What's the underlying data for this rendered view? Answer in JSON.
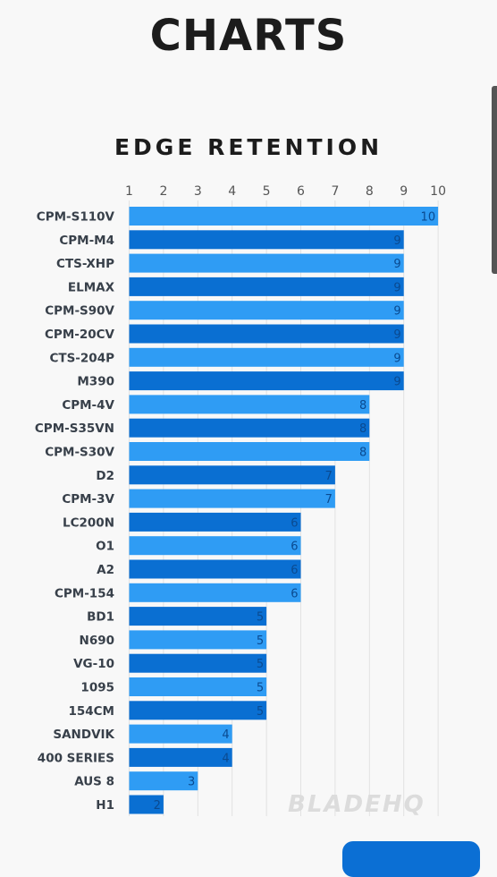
{
  "header": {
    "title": "CHARTS"
  },
  "colors": {
    "bar_light": "#2f9cf4",
    "bar_dark": "#0a6fd2",
    "label": "#38404a",
    "value": "#0a4a90"
  },
  "chart_data": {
    "type": "bar",
    "orientation": "horizontal",
    "title": "EDGE RETENTION",
    "xlim": [
      1,
      10
    ],
    "xticks": [
      "1",
      "2",
      "3",
      "4",
      "5",
      "6",
      "7",
      "8",
      "9",
      "10"
    ],
    "grid": true,
    "categories": [
      "CPM-S110V",
      "CPM-M4",
      "CTS-XHP",
      "ELMAX",
      "CPM-S90V",
      "CPM-20CV",
      "CTS-204P",
      "M390",
      "CPM-4V",
      "CPM-S35VN",
      "CPM-S30V",
      "D2",
      "CPM-3V",
      "LC200N",
      "O1",
      "A2",
      "CPM-154",
      "BD1",
      "N690",
      "VG-10",
      "1095",
      "154CM",
      "SANDVIK",
      "400 SERIES",
      "AUS 8",
      "H1"
    ],
    "values": [
      10,
      9,
      9,
      9,
      9,
      9,
      9,
      9,
      8,
      8,
      8,
      7,
      7,
      6,
      6,
      6,
      6,
      5,
      5,
      5,
      5,
      5,
      4,
      4,
      3,
      2
    ],
    "watermark": "BLADEHQ"
  }
}
